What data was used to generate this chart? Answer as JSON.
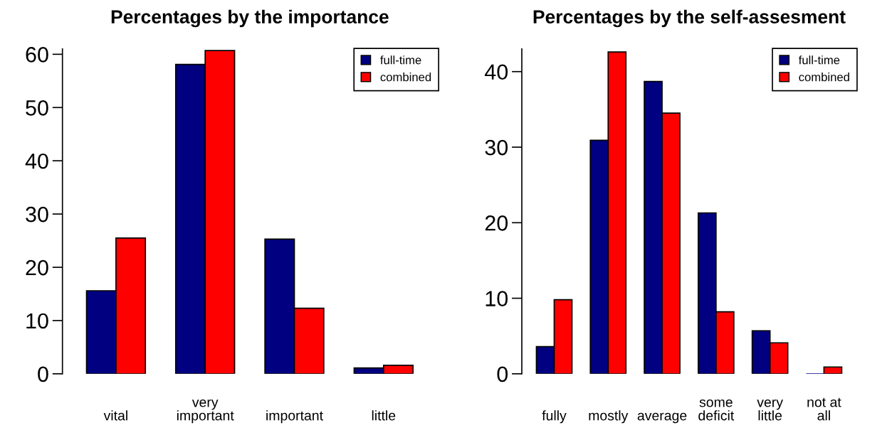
{
  "chart_data": [
    {
      "type": "bar",
      "title": "Percentages by the importance",
      "categories": [
        "vital",
        "very\nimportant",
        "important",
        "little"
      ],
      "series": [
        {
          "name": "full-time",
          "color": "#000080",
          "values": [
            15.6,
            58.1,
            25.3,
            1.1
          ]
        },
        {
          "name": "combined",
          "color": "#ff0000",
          "values": [
            25.5,
            60.7,
            12.3,
            1.6
          ]
        }
      ],
      "ylim": [
        0,
        61
      ],
      "yticks": [
        0,
        10,
        20,
        30,
        40,
        50,
        60
      ],
      "grid": false,
      "legend": "top right"
    },
    {
      "type": "bar",
      "title": "Percentages by the self-assesment",
      "categories": [
        "fully",
        "mostly",
        "average",
        "some\ndeficit",
        "very\nlittle",
        "not at\nall"
      ],
      "series": [
        {
          "name": "full-time",
          "color": "#000080",
          "values": [
            3.6,
            30.9,
            38.7,
            21.3,
            5.7,
            0
          ]
        },
        {
          "name": "combined",
          "color": "#ff0000",
          "values": [
            9.8,
            42.6,
            34.5,
            8.2,
            4.1,
            0.9
          ]
        }
      ],
      "ylim": [
        0,
        43
      ],
      "yticks": [
        0,
        10,
        20,
        30,
        40
      ],
      "grid": false,
      "legend": "top right"
    }
  ]
}
